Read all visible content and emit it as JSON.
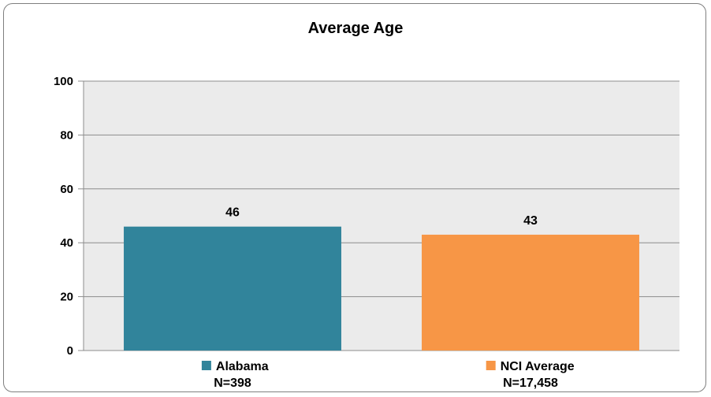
{
  "chart_data": {
    "type": "bar",
    "title": "Average Age",
    "categories": [
      "Alabama",
      "NCI Average"
    ],
    "category_sublabels": [
      "N=398",
      "N=17,458"
    ],
    "values": [
      46,
      43
    ],
    "data_labels": [
      "46",
      "43"
    ],
    "colors": [
      "#31849b",
      "#f79646"
    ],
    "ylim": [
      0,
      100
    ],
    "yticks": [
      0,
      20,
      40,
      60,
      80,
      100
    ],
    "ytick_labels": [
      "0",
      "20",
      "40",
      "60",
      "80",
      "100"
    ],
    "xlabel": "",
    "ylabel": "",
    "grid": true,
    "plot_background": "#ebebeb",
    "legend": "bottom"
  }
}
